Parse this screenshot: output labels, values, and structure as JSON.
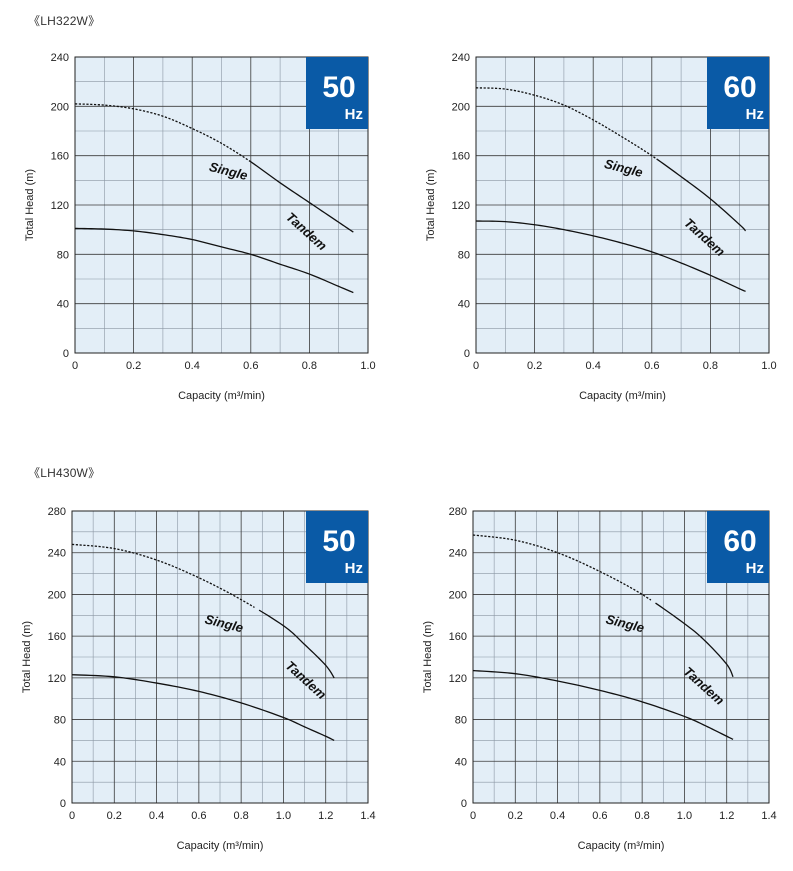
{
  "sections": [
    {
      "title": "《LH322W》"
    },
    {
      "title": "《LH430W》"
    }
  ],
  "chart_data": [
    {
      "type": "line",
      "section": 0,
      "badge": {
        "number": "50",
        "unit": "Hz",
        "color": "#0a5aa6"
      },
      "xlabel": "Capacity (m³/min)",
      "ylabel": "Total Head (m)",
      "xlim": [
        0,
        1.0
      ],
      "ylim": [
        0,
        240
      ],
      "xticks": [
        0,
        0.2,
        0.4,
        0.6,
        0.8,
        1.0
      ],
      "xtick_labels": [
        "0",
        "0.2",
        "0.4",
        "0.6",
        "0.8",
        "1.0"
      ],
      "yticks": [
        0,
        40,
        80,
        120,
        160,
        200,
        240
      ],
      "ytick_labels": [
        "0",
        "40",
        "80",
        "120",
        "160",
        "200",
        "240"
      ],
      "grid": true,
      "background": "#e3eef7",
      "series": [
        {
          "name": "Tandem",
          "dashed_until": 0.6,
          "points": [
            [
              0,
              202
            ],
            [
              0.1,
              201
            ],
            [
              0.2,
              198
            ],
            [
              0.3,
              192
            ],
            [
              0.4,
              182
            ],
            [
              0.5,
              170
            ],
            [
              0.6,
              155
            ],
            [
              0.7,
              138
            ],
            [
              0.8,
              122
            ],
            [
              0.9,
              106
            ],
            [
              0.95,
              98
            ]
          ]
        },
        {
          "name": "Single",
          "dashed_until": 0,
          "points": [
            [
              0,
              101
            ],
            [
              0.1,
              100.5
            ],
            [
              0.2,
              99
            ],
            [
              0.3,
              96
            ],
            [
              0.4,
              92
            ],
            [
              0.5,
              86
            ],
            [
              0.6,
              80
            ],
            [
              0.7,
              72
            ],
            [
              0.8,
              64
            ],
            [
              0.9,
              54
            ],
            [
              0.95,
              49
            ]
          ]
        }
      ]
    },
    {
      "type": "line",
      "section": 0,
      "badge": {
        "number": "60",
        "unit": "Hz",
        "color": "#0a5aa6"
      },
      "xlabel": "Capacity (m³/min)",
      "ylabel": "Total Head (m)",
      "xlim": [
        0,
        1.0
      ],
      "ylim": [
        0,
        240
      ],
      "xticks": [
        0,
        0.2,
        0.4,
        0.6,
        0.8,
        1.0
      ],
      "xtick_labels": [
        "0",
        "0.2",
        "0.4",
        "0.6",
        "0.8",
        "1.0"
      ],
      "yticks": [
        0,
        40,
        80,
        120,
        160,
        200,
        240
      ],
      "ytick_labels": [
        "0",
        "40",
        "80",
        "120",
        "160",
        "200",
        "240"
      ],
      "grid": true,
      "background": "#e3eef7",
      "series": [
        {
          "name": "Tandem",
          "dashed_until": 0.62,
          "points": [
            [
              0,
              215
            ],
            [
              0.1,
              214
            ],
            [
              0.2,
              209
            ],
            [
              0.3,
              201
            ],
            [
              0.4,
              189
            ],
            [
              0.5,
              175
            ],
            [
              0.6,
              160
            ],
            [
              0.7,
              143
            ],
            [
              0.8,
              125
            ],
            [
              0.9,
              104
            ],
            [
              0.92,
              99
            ]
          ]
        },
        {
          "name": "Single",
          "dashed_until": 0,
          "points": [
            [
              0,
              107
            ],
            [
              0.1,
              106.5
            ],
            [
              0.2,
              104
            ],
            [
              0.3,
              100
            ],
            [
              0.4,
              95
            ],
            [
              0.5,
              89
            ],
            [
              0.6,
              82
            ],
            [
              0.7,
              73
            ],
            [
              0.8,
              63
            ],
            [
              0.9,
              52
            ],
            [
              0.92,
              50
            ]
          ]
        }
      ]
    },
    {
      "type": "line",
      "section": 1,
      "badge": {
        "number": "50",
        "unit": "Hz",
        "color": "#0a5aa6"
      },
      "xlabel": "Capacity (m³/min)",
      "ylabel": "Total Head (m)",
      "xlim": [
        0,
        1.4
      ],
      "ylim": [
        0,
        280
      ],
      "xticks": [
        0,
        0.2,
        0.4,
        0.6,
        0.8,
        1.0,
        1.2,
        1.4
      ],
      "xtick_labels": [
        "0",
        "0.2",
        "0.4",
        "0.6",
        "0.8",
        "1.0",
        "1.2",
        "1.4"
      ],
      "yticks": [
        0,
        40,
        80,
        120,
        160,
        200,
        240,
        280
      ],
      "ytick_labels": [
        "0",
        "40",
        "80",
        "120",
        "160",
        "200",
        "240",
        "280"
      ],
      "grid": true,
      "background": "#e3eef7",
      "series": [
        {
          "name": "Tandem",
          "dashed_until": 0.88,
          "points": [
            [
              0,
              248
            ],
            [
              0.2,
              244
            ],
            [
              0.4,
              233
            ],
            [
              0.6,
              216
            ],
            [
              0.8,
              195
            ],
            [
              1.0,
              170
            ],
            [
              1.1,
              152
            ],
            [
              1.2,
              132
            ],
            [
              1.24,
              120
            ]
          ]
        },
        {
          "name": "Single",
          "dashed_until": 0,
          "points": [
            [
              0,
              123
            ],
            [
              0.2,
              121
            ],
            [
              0.4,
              115
            ],
            [
              0.6,
              107
            ],
            [
              0.8,
              96
            ],
            [
              1.0,
              82
            ],
            [
              1.1,
              73
            ],
            [
              1.2,
              64
            ],
            [
              1.24,
              60
            ]
          ]
        }
      ]
    },
    {
      "type": "line",
      "section": 1,
      "badge": {
        "number": "60",
        "unit": "Hz",
        "color": "#0a5aa6"
      },
      "xlabel": "Capacity (m³/min)",
      "ylabel": "Total Head (m)",
      "xlim": [
        0,
        1.4
      ],
      "ylim": [
        0,
        280
      ],
      "xticks": [
        0,
        0.2,
        0.4,
        0.6,
        0.8,
        1.0,
        1.2,
        1.4
      ],
      "xtick_labels": [
        "0",
        "0.2",
        "0.4",
        "0.6",
        "0.8",
        "1.0",
        "1.2",
        "1.4"
      ],
      "yticks": [
        0,
        40,
        80,
        120,
        160,
        200,
        240,
        280
      ],
      "ytick_labels": [
        "0",
        "40",
        "80",
        "120",
        "160",
        "200",
        "240",
        "280"
      ],
      "grid": true,
      "background": "#e3eef7",
      "series": [
        {
          "name": "Tandem",
          "dashed_until": 0.85,
          "points": [
            [
              0,
              257
            ],
            [
              0.2,
              252
            ],
            [
              0.4,
              240
            ],
            [
              0.6,
              222
            ],
            [
              0.8,
              200
            ],
            [
              1.0,
              172
            ],
            [
              1.1,
              155
            ],
            [
              1.2,
              133
            ],
            [
              1.23,
              121
            ]
          ]
        },
        {
          "name": "Single",
          "dashed_until": 0,
          "points": [
            [
              0,
              127
            ],
            [
              0.2,
              124
            ],
            [
              0.4,
              117
            ],
            [
              0.6,
              108
            ],
            [
              0.8,
              97
            ],
            [
              1.0,
              83
            ],
            [
              1.1,
              74
            ],
            [
              1.2,
              64
            ],
            [
              1.23,
              61
            ]
          ]
        }
      ]
    }
  ]
}
